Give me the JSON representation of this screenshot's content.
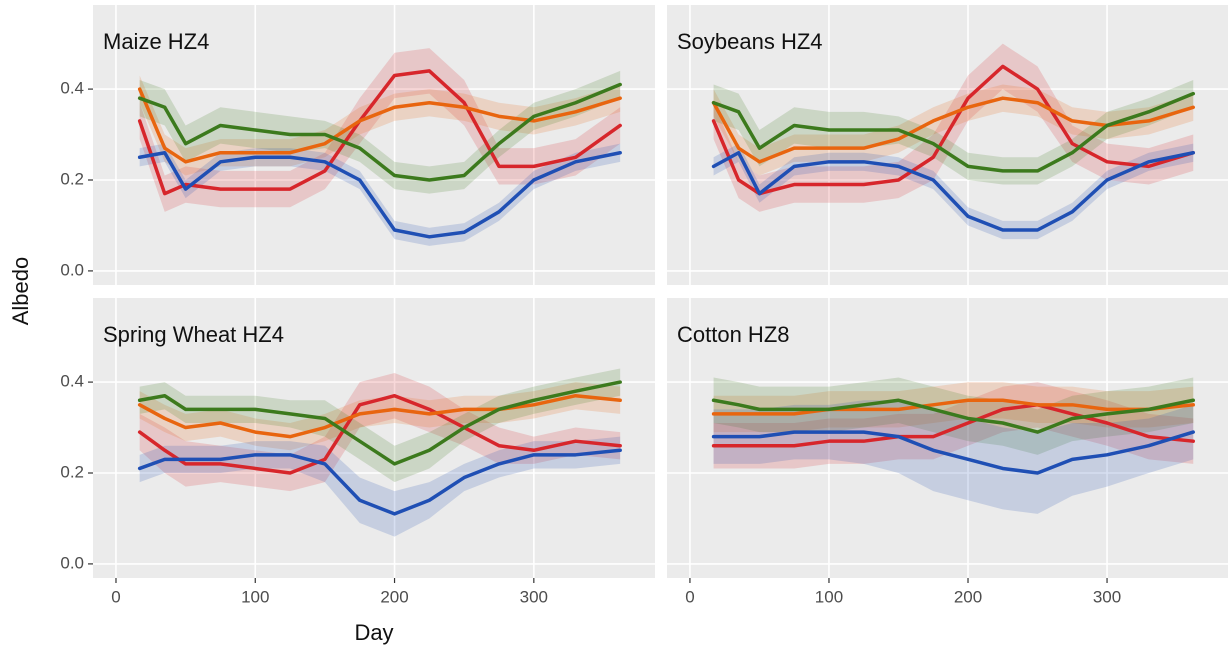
{
  "axis_labels": {
    "x": "Day",
    "y": "Albedo"
  },
  "chart_data": [
    {
      "type": "line",
      "title": "Maize HZ4",
      "x": [
        17,
        35,
        50,
        75,
        100,
        125,
        150,
        175,
        200,
        225,
        250,
        275,
        300,
        330,
        362
      ],
      "xlim": [
        -16.5,
        387
      ],
      "xticks": [
        0,
        100,
        200,
        300
      ],
      "ylim": [
        -0.031,
        0.585
      ],
      "yticks": [
        {
          "value": 0,
          "label": "0.0"
        },
        0.2,
        0.4
      ],
      "grid": true,
      "series": [
        {
          "color": "#d7262b",
          "values": [
            0.33,
            0.17,
            0.19,
            0.18,
            0.18,
            0.18,
            0.22,
            0.33,
            0.43,
            0.44,
            0.37,
            0.23,
            0.23,
            0.25,
            0.32
          ],
          "errors": [
            0.04,
            0.04,
            0.04,
            0.04,
            0.04,
            0.04,
            0.04,
            0.05,
            0.05,
            0.05,
            0.05,
            0.04,
            0.04,
            0.04,
            0.04
          ]
        },
        {
          "color": "#e8650f",
          "values": [
            0.4,
            0.27,
            0.24,
            0.26,
            0.26,
            0.26,
            0.28,
            0.33,
            0.36,
            0.37,
            0.36,
            0.34,
            0.33,
            0.35,
            0.38
          ],
          "errors": [
            0.03,
            0.03,
            0.03,
            0.03,
            0.03,
            0.03,
            0.03,
            0.03,
            0.03,
            0.03,
            0.03,
            0.03,
            0.03,
            0.03,
            0.03
          ]
        },
        {
          "color": "#3c7a1d",
          "values": [
            0.38,
            0.36,
            0.28,
            0.32,
            0.31,
            0.3,
            0.3,
            0.27,
            0.21,
            0.2,
            0.21,
            0.28,
            0.34,
            0.37,
            0.41
          ],
          "errors": [
            0.04,
            0.04,
            0.04,
            0.04,
            0.04,
            0.04,
            0.03,
            0.03,
            0.03,
            0.03,
            0.03,
            0.03,
            0.03,
            0.03,
            0.03
          ]
        },
        {
          "color": "#1f4fb4",
          "values": [
            0.25,
            0.26,
            0.18,
            0.24,
            0.25,
            0.25,
            0.24,
            0.2,
            0.09,
            0.075,
            0.085,
            0.13,
            0.2,
            0.24,
            0.26
          ],
          "errors": [
            0.02,
            0.02,
            0.02,
            0.02,
            0.02,
            0.02,
            0.02,
            0.02,
            0.02,
            0.02,
            0.02,
            0.02,
            0.02,
            0.02,
            0.02
          ]
        }
      ]
    },
    {
      "type": "line",
      "title": "Soybeans HZ4",
      "x": [
        17,
        35,
        50,
        75,
        100,
        125,
        150,
        175,
        200,
        225,
        250,
        275,
        300,
        330,
        362
      ],
      "xlim": [
        -16.5,
        387
      ],
      "xticks": [
        0,
        100,
        200,
        300
      ],
      "ylim": [
        -0.031,
        0.585
      ],
      "yticks": [
        {
          "value": 0,
          "label": "0.0"
        },
        0.2,
        0.4
      ],
      "grid": true,
      "series": [
        {
          "color": "#d7262b",
          "values": [
            0.33,
            0.2,
            0.17,
            0.19,
            0.19,
            0.19,
            0.2,
            0.25,
            0.38,
            0.45,
            0.4,
            0.28,
            0.24,
            0.23,
            0.26
          ],
          "errors": [
            0.04,
            0.04,
            0.04,
            0.04,
            0.04,
            0.04,
            0.04,
            0.05,
            0.05,
            0.05,
            0.05,
            0.04,
            0.04,
            0.04,
            0.04
          ]
        },
        {
          "color": "#e8650f",
          "values": [
            0.37,
            0.27,
            0.24,
            0.27,
            0.27,
            0.27,
            0.29,
            0.33,
            0.36,
            0.38,
            0.37,
            0.33,
            0.32,
            0.33,
            0.36
          ],
          "errors": [
            0.03,
            0.03,
            0.03,
            0.03,
            0.03,
            0.03,
            0.03,
            0.03,
            0.03,
            0.03,
            0.03,
            0.03,
            0.03,
            0.03,
            0.03
          ]
        },
        {
          "color": "#3c7a1d",
          "values": [
            0.37,
            0.35,
            0.27,
            0.32,
            0.31,
            0.31,
            0.31,
            0.28,
            0.23,
            0.22,
            0.22,
            0.26,
            0.32,
            0.35,
            0.39
          ],
          "errors": [
            0.04,
            0.04,
            0.04,
            0.04,
            0.04,
            0.04,
            0.03,
            0.03,
            0.03,
            0.03,
            0.03,
            0.03,
            0.03,
            0.03,
            0.03
          ]
        },
        {
          "color": "#1f4fb4",
          "values": [
            0.23,
            0.26,
            0.17,
            0.23,
            0.24,
            0.24,
            0.23,
            0.2,
            0.12,
            0.09,
            0.09,
            0.13,
            0.2,
            0.24,
            0.26
          ],
          "errors": [
            0.02,
            0.02,
            0.02,
            0.02,
            0.02,
            0.02,
            0.02,
            0.02,
            0.02,
            0.02,
            0.02,
            0.02,
            0.02,
            0.02,
            0.02
          ]
        }
      ]
    },
    {
      "type": "line",
      "title": "Spring Wheat HZ4",
      "x": [
        17,
        35,
        50,
        75,
        100,
        125,
        150,
        175,
        200,
        225,
        250,
        275,
        300,
        330,
        362
      ],
      "xlim": [
        -16.5,
        387
      ],
      "xticks": [
        0,
        100,
        200,
        300
      ],
      "ylim": [
        -0.031,
        0.585
      ],
      "yticks": [
        {
          "value": 0,
          "label": "0.0"
        },
        0.2,
        0.4
      ],
      "grid": true,
      "series": [
        {
          "color": "#d7262b",
          "values": [
            0.29,
            0.25,
            0.22,
            0.22,
            0.21,
            0.2,
            0.23,
            0.35,
            0.37,
            0.34,
            0.3,
            0.26,
            0.25,
            0.27,
            0.26
          ],
          "errors": [
            0.04,
            0.05,
            0.05,
            0.04,
            0.04,
            0.04,
            0.05,
            0.05,
            0.05,
            0.05,
            0.04,
            0.04,
            0.03,
            0.03,
            0.03
          ]
        },
        {
          "color": "#e8650f",
          "values": [
            0.35,
            0.32,
            0.3,
            0.31,
            0.29,
            0.28,
            0.3,
            0.33,
            0.34,
            0.33,
            0.34,
            0.34,
            0.35,
            0.37,
            0.36
          ],
          "errors": [
            0.03,
            0.03,
            0.03,
            0.03,
            0.03,
            0.03,
            0.03,
            0.03,
            0.03,
            0.03,
            0.03,
            0.03,
            0.03,
            0.03,
            0.03
          ]
        },
        {
          "color": "#3c7a1d",
          "values": [
            0.36,
            0.37,
            0.34,
            0.34,
            0.34,
            0.33,
            0.32,
            0.27,
            0.22,
            0.25,
            0.3,
            0.34,
            0.36,
            0.38,
            0.4
          ],
          "errors": [
            0.03,
            0.03,
            0.03,
            0.03,
            0.03,
            0.03,
            0.04,
            0.04,
            0.04,
            0.04,
            0.03,
            0.03,
            0.03,
            0.03,
            0.03
          ]
        },
        {
          "color": "#1f4fb4",
          "values": [
            0.21,
            0.23,
            0.23,
            0.23,
            0.24,
            0.24,
            0.22,
            0.14,
            0.11,
            0.14,
            0.19,
            0.22,
            0.24,
            0.24,
            0.25
          ],
          "errors": [
            0.03,
            0.03,
            0.03,
            0.03,
            0.03,
            0.03,
            0.04,
            0.05,
            0.05,
            0.04,
            0.03,
            0.03,
            0.03,
            0.03,
            0.03
          ]
        }
      ]
    },
    {
      "type": "line",
      "title": "Cotton HZ8",
      "x": [
        17,
        35,
        50,
        75,
        100,
        125,
        150,
        175,
        200,
        225,
        250,
        275,
        300,
        330,
        362
      ],
      "xlim": [
        -16.5,
        387
      ],
      "xticks": [
        0,
        100,
        200,
        300
      ],
      "ylim": [
        -0.031,
        0.585
      ],
      "yticks": [
        {
          "value": 0,
          "label": "0.0"
        },
        0.2,
        0.4
      ],
      "grid": true,
      "series": [
        {
          "color": "#d7262b",
          "values": [
            0.26,
            0.26,
            0.26,
            0.26,
            0.27,
            0.27,
            0.28,
            0.28,
            0.31,
            0.34,
            0.35,
            0.33,
            0.31,
            0.28,
            0.27
          ],
          "errors": [
            0.05,
            0.05,
            0.05,
            0.05,
            0.05,
            0.05,
            0.05,
            0.05,
            0.05,
            0.05,
            0.05,
            0.05,
            0.05,
            0.05,
            0.05
          ]
        },
        {
          "color": "#e8650f",
          "values": [
            0.33,
            0.33,
            0.33,
            0.33,
            0.34,
            0.34,
            0.34,
            0.35,
            0.36,
            0.36,
            0.35,
            0.35,
            0.34,
            0.34,
            0.35
          ],
          "errors": [
            0.04,
            0.04,
            0.04,
            0.04,
            0.04,
            0.04,
            0.04,
            0.04,
            0.04,
            0.04,
            0.04,
            0.04,
            0.04,
            0.04,
            0.04
          ]
        },
        {
          "color": "#3c7a1d",
          "values": [
            0.36,
            0.35,
            0.34,
            0.34,
            0.34,
            0.35,
            0.36,
            0.34,
            0.32,
            0.31,
            0.29,
            0.32,
            0.33,
            0.34,
            0.36
          ],
          "errors": [
            0.05,
            0.05,
            0.05,
            0.05,
            0.05,
            0.05,
            0.05,
            0.05,
            0.05,
            0.05,
            0.05,
            0.05,
            0.05,
            0.05,
            0.05
          ]
        },
        {
          "color": "#1f4fb4",
          "values": [
            0.28,
            0.28,
            0.28,
            0.29,
            0.29,
            0.29,
            0.28,
            0.25,
            0.23,
            0.21,
            0.2,
            0.23,
            0.24,
            0.26,
            0.29
          ],
          "errors": [
            0.06,
            0.06,
            0.06,
            0.06,
            0.06,
            0.07,
            0.08,
            0.09,
            0.09,
            0.09,
            0.09,
            0.08,
            0.07,
            0.06,
            0.06
          ]
        }
      ]
    }
  ]
}
